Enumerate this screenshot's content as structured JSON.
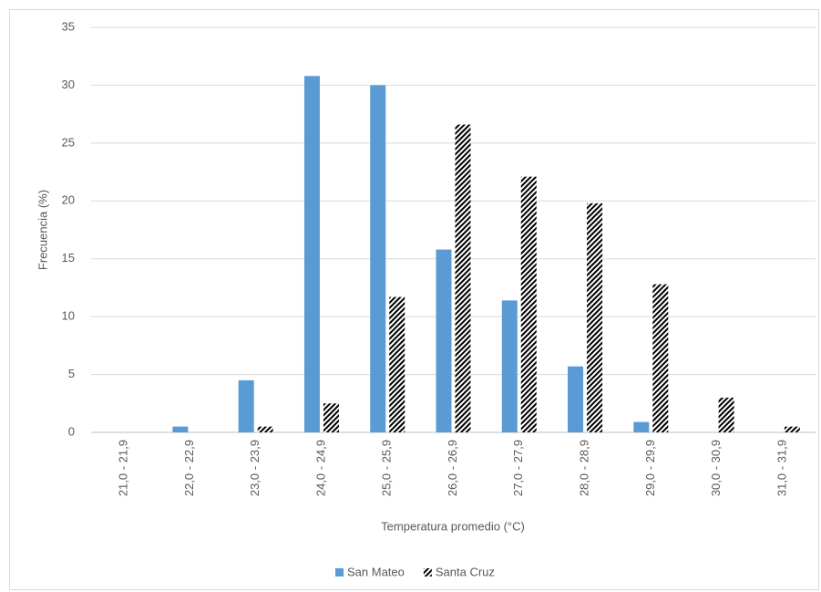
{
  "chart_data": {
    "type": "bar",
    "x_label": "Temperatura promedio (°C)",
    "y_label": "Frecuencia (%)",
    "categories": [
      "21,0 - 21,9",
      "22,0 - 22,9",
      "23,0 - 23,9",
      "24,0 - 24,9",
      "25,0 - 25,9",
      "26,0 - 26,9",
      "27,0 - 27,9",
      "28,0 - 28,9",
      "29,0 - 29,9",
      "30,0 - 30,9",
      "31,0 - 31,9"
    ],
    "series": [
      {
        "name": "San Mateo",
        "color": "#5b9bd5",
        "values": [
          0,
          0.5,
          4.5,
          30.8,
          30,
          15.8,
          11.4,
          5.7,
          0.9,
          0,
          0
        ]
      },
      {
        "name": "Santa Cruz",
        "color": "#000000",
        "values": [
          0,
          0,
          0.5,
          2.5,
          11.7,
          26.6,
          22.1,
          19.8,
          12.8,
          3,
          0.5
        ]
      }
    ],
    "ylim": [
      0,
      35
    ],
    "yticks": [
      0,
      5,
      10,
      15,
      20,
      25,
      30,
      35
    ],
    "grid": true,
    "legend": "bottom"
  }
}
